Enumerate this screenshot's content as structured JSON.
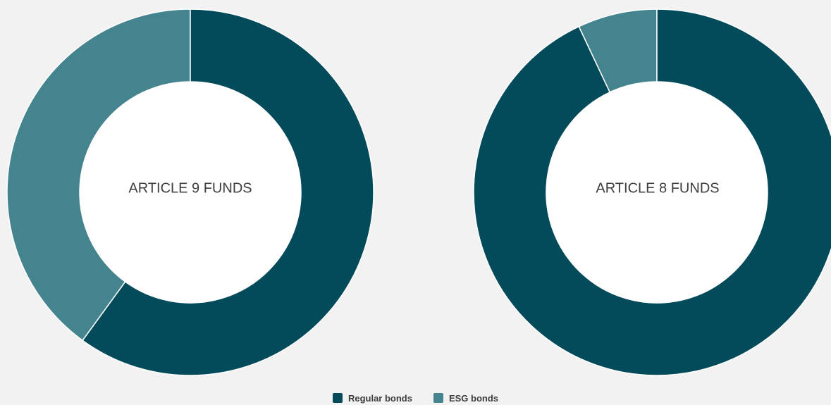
{
  "colors": {
    "background": "#f2f2f2",
    "regular": "#034a5a",
    "esg": "#43848f"
  },
  "legend": {
    "items": [
      {
        "label": "Regular bonds",
        "color": "#034a5a"
      },
      {
        "label": "ESG bonds",
        "color": "#43848f"
      }
    ]
  },
  "chart_data": [
    {
      "type": "pie",
      "variant": "donut",
      "center_label": "ARTICLE 9 FUNDS",
      "categories": [
        "Regular bonds",
        "ESG bonds"
      ],
      "values": [
        60,
        40
      ],
      "colors": [
        "#034a5a",
        "#43848f"
      ]
    },
    {
      "type": "pie",
      "variant": "donut",
      "center_label": "ARTICLE 8 FUNDS",
      "categories": [
        "Regular bonds",
        "ESG bonds"
      ],
      "values": [
        93,
        7
      ],
      "colors": [
        "#034a5a",
        "#43848f"
      ]
    }
  ]
}
